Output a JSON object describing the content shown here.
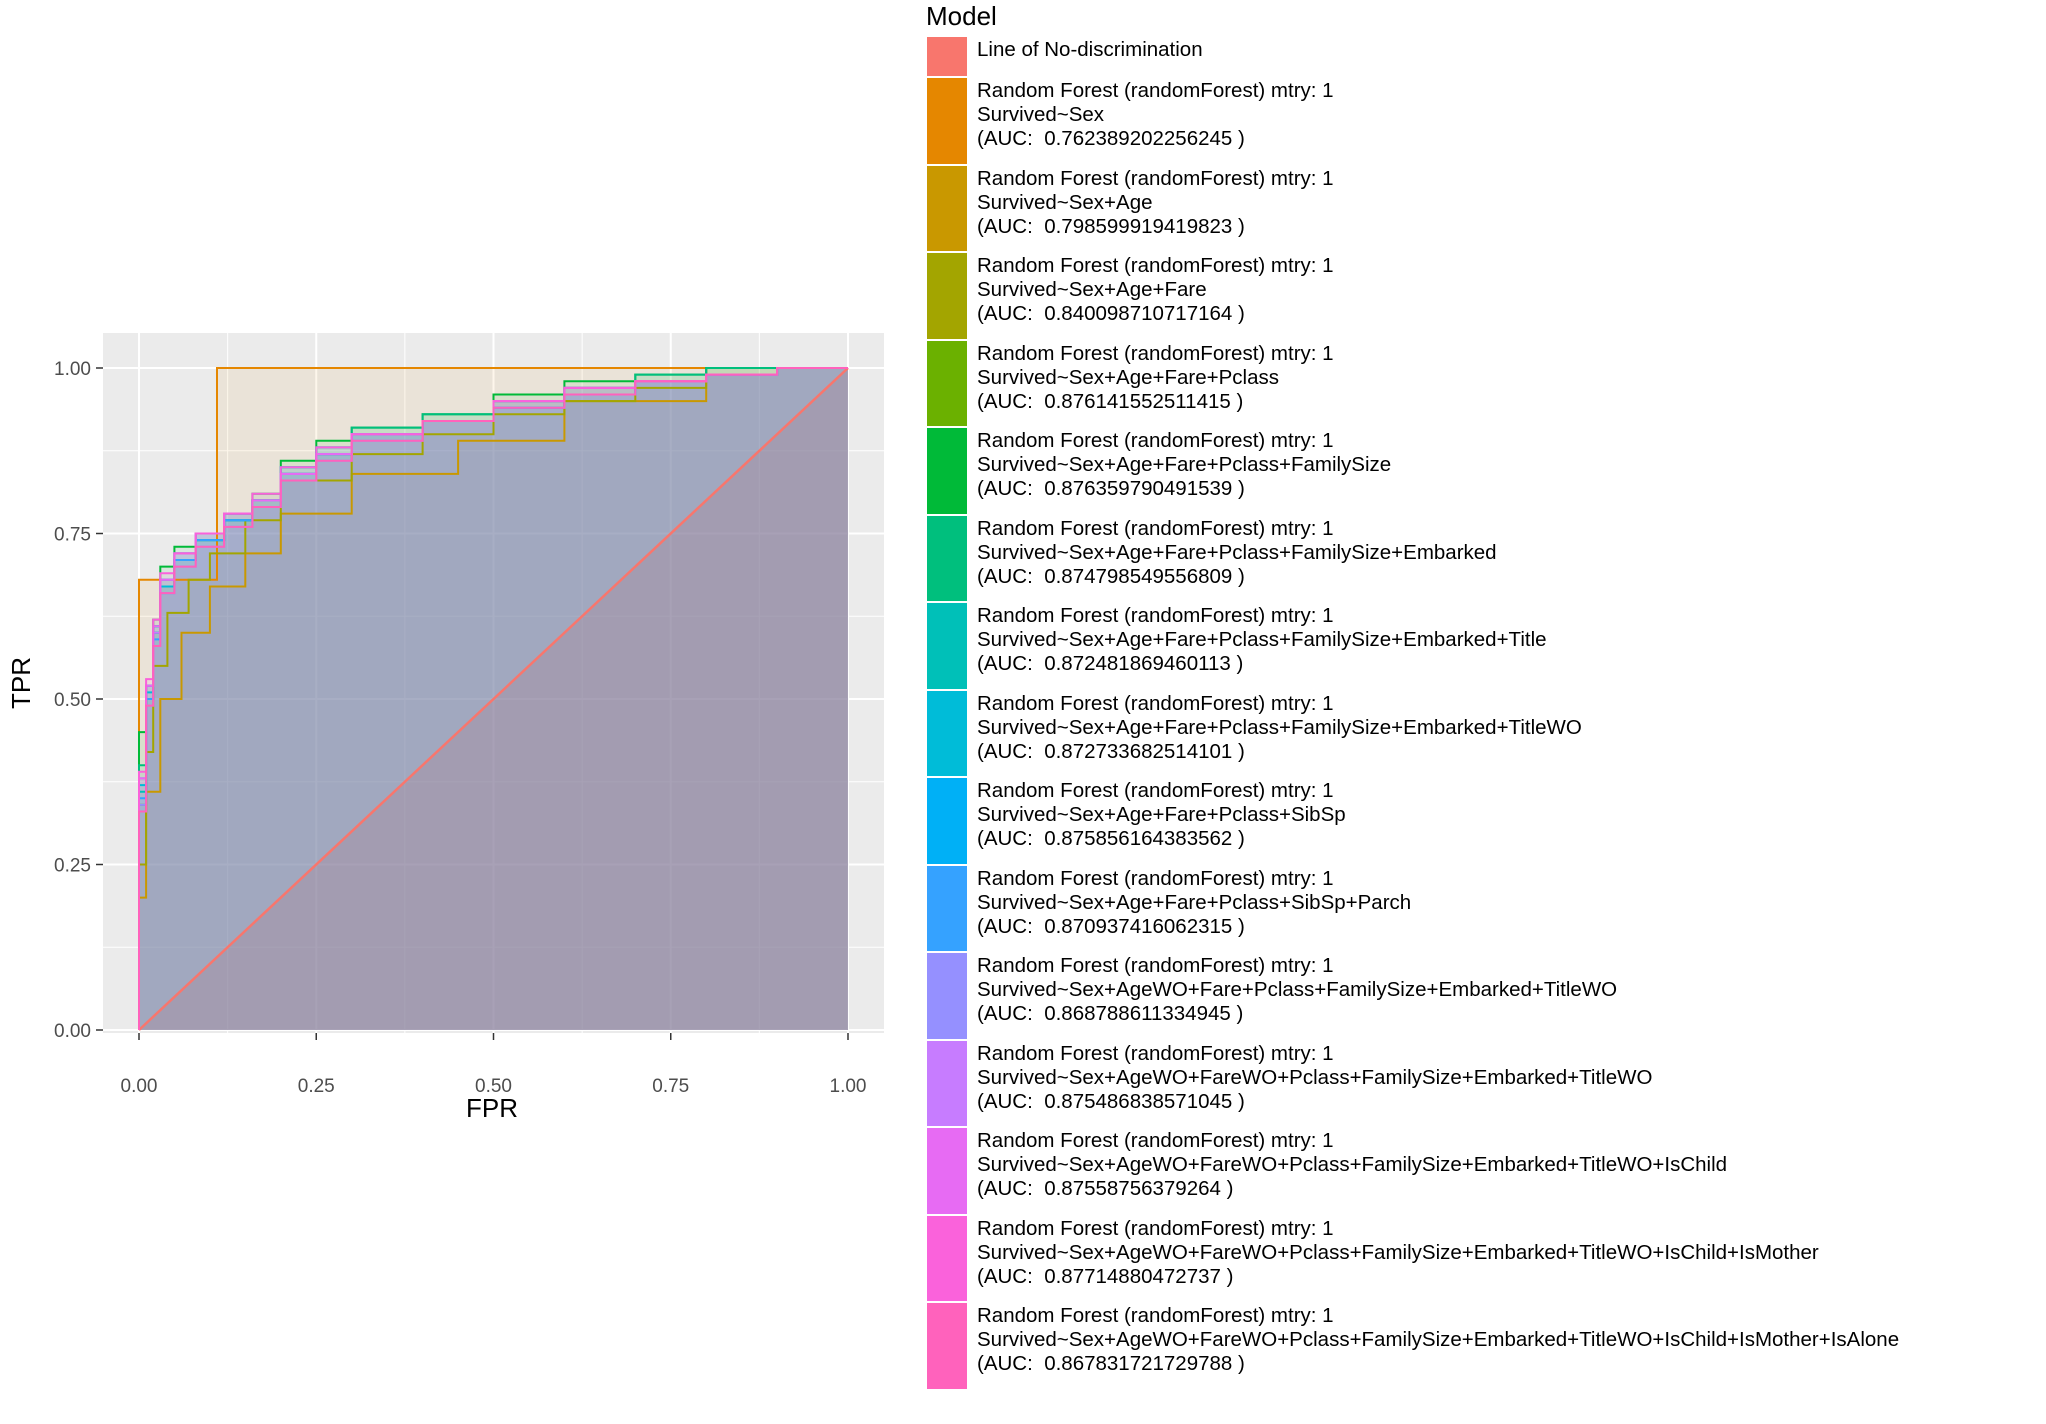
{
  "chart_data": {
    "type": "area",
    "xlabel": "FPR",
    "ylabel": "TPR",
    "xlim": [
      0,
      1
    ],
    "ylim": [
      0,
      1
    ],
    "xticks": [
      "0.00",
      "0.25",
      "0.50",
      "0.75",
      "1.00"
    ],
    "yticks": [
      "0.00",
      "0.25",
      "0.50",
      "0.75",
      "1.00"
    ],
    "grid": true,
    "legend_position": "right",
    "legend_title": "Model",
    "series": [
      {
        "name": "Line of No-discrimination",
        "color": "#F8766D",
        "x": [
          0,
          1
        ],
        "y": [
          0,
          1
        ]
      },
      {
        "name": "Random Forest (randomForest) mtry: 1\nSurvived~Sex\n(AUC:  0.762389202256245 )",
        "color": "#E58700",
        "x": [
          0,
          0.11,
          1
        ],
        "y": [
          0,
          0.68,
          1
        ]
      },
      {
        "name": "Random Forest (randomForest) mtry: 1\nSurvived~Sex+Age\n(AUC:  0.798599919419823 )",
        "color": "#C99800",
        "x": [
          0,
          0.01,
          0.03,
          0.06,
          0.1,
          0.15,
          0.2,
          0.3,
          0.45,
          0.6,
          0.8,
          1
        ],
        "y": [
          0,
          0.2,
          0.36,
          0.5,
          0.6,
          0.67,
          0.72,
          0.78,
          0.84,
          0.89,
          0.95,
          1
        ]
      },
      {
        "name": "Random Forest (randomForest) mtry: 1\nSurvived~Sex+Age+Fare\n(AUC:  0.840098710717164 )",
        "color": "#A3A500",
        "x": [
          0,
          0.01,
          0.02,
          0.04,
          0.07,
          0.1,
          0.15,
          0.2,
          0.3,
          0.4,
          0.5,
          0.6,
          0.7,
          0.8,
          0.9,
          1
        ],
        "y": [
          0,
          0.25,
          0.42,
          0.55,
          0.63,
          0.68,
          0.72,
          0.77,
          0.83,
          0.87,
          0.9,
          0.93,
          0.95,
          0.97,
          0.99,
          1
        ]
      },
      {
        "name": "Random Forest (randomForest) mtry: 1\nSurvived~Sex+Age+Fare+Pclass\n(AUC:  0.876141552511415 )",
        "color": "#6BB100",
        "x": [
          0,
          0.01,
          0.02,
          0.03,
          0.05,
          0.08,
          0.12,
          0.16,
          0.2,
          0.25,
          0.3,
          0.4,
          0.5,
          0.6,
          0.7,
          0.8,
          0.9,
          1
        ],
        "y": [
          0,
          0.34,
          0.5,
          0.6,
          0.67,
          0.71,
          0.74,
          0.77,
          0.8,
          0.84,
          0.87,
          0.9,
          0.92,
          0.95,
          0.97,
          0.98,
          0.99,
          1
        ]
      },
      {
        "name": "Random Forest (randomForest) mtry: 1\nSurvived~Sex+Age+Fare+Pclass+FamilySize\n(AUC:  0.876359790491539 )",
        "color": "#00BA38",
        "x": [
          0,
          0.01,
          0.02,
          0.03,
          0.05,
          0.08,
          0.12,
          0.16,
          0.2,
          0.25,
          0.3,
          0.4,
          0.5,
          0.6,
          0.7,
          0.8,
          0.9,
          1
        ],
        "y": [
          0,
          0.45,
          0.52,
          0.62,
          0.7,
          0.73,
          0.75,
          0.78,
          0.81,
          0.86,
          0.89,
          0.91,
          0.93,
          0.96,
          0.98,
          0.99,
          1,
          1
        ]
      },
      {
        "name": "Random Forest (randomForest) mtry: 1\nSurvived~Sex+Age+Fare+Pclass+FamilySize+Embarked\n(AUC:  0.874798549556809 )",
        "color": "#00BF7D",
        "x": [
          0,
          0.01,
          0.02,
          0.03,
          0.05,
          0.08,
          0.12,
          0.16,
          0.2,
          0.25,
          0.3,
          0.4,
          0.5,
          0.6,
          0.7,
          0.8,
          0.9,
          1
        ],
        "y": [
          0,
          0.4,
          0.52,
          0.61,
          0.68,
          0.72,
          0.75,
          0.78,
          0.8,
          0.85,
          0.88,
          0.91,
          0.93,
          0.95,
          0.97,
          0.99,
          1,
          1
        ]
      },
      {
        "name": "Random Forest (randomForest) mtry: 1\nSurvived~Sex+Age+Fare+Pclass+FamilySize+Embarked+Title\n(AUC:  0.872481869460113 )",
        "color": "#00C0B8",
        "x": [
          0,
          0.01,
          0.02,
          0.03,
          0.05,
          0.08,
          0.12,
          0.16,
          0.2,
          0.25,
          0.3,
          0.4,
          0.5,
          0.6,
          0.7,
          0.8,
          0.9,
          1
        ],
        "y": [
          0,
          0.36,
          0.5,
          0.6,
          0.67,
          0.71,
          0.74,
          0.77,
          0.8,
          0.84,
          0.87,
          0.9,
          0.92,
          0.94,
          0.96,
          0.98,
          0.99,
          1
        ]
      },
      {
        "name": "Random Forest (randomForest) mtry: 1\nSurvived~Sex+Age+Fare+Pclass+FamilySize+Embarked+TitleWO\n(AUC:  0.872733682514101 )",
        "color": "#00BCD8",
        "x": [
          0,
          0.01,
          0.02,
          0.03,
          0.05,
          0.08,
          0.12,
          0.16,
          0.2,
          0.25,
          0.3,
          0.4,
          0.5,
          0.6,
          0.7,
          0.8,
          0.9,
          1
        ],
        "y": [
          0,
          0.37,
          0.51,
          0.6,
          0.67,
          0.71,
          0.74,
          0.77,
          0.8,
          0.84,
          0.87,
          0.9,
          0.92,
          0.94,
          0.96,
          0.98,
          0.99,
          1
        ]
      },
      {
        "name": "Random Forest (randomForest) mtry: 1\nSurvived~Sex+Age+Fare+Pclass+SibSp\n(AUC:  0.875856164383562 )",
        "color": "#00B0F6",
        "x": [
          0,
          0.01,
          0.02,
          0.03,
          0.05,
          0.08,
          0.12,
          0.16,
          0.2,
          0.25,
          0.3,
          0.4,
          0.5,
          0.6,
          0.7,
          0.8,
          0.9,
          1
        ],
        "y": [
          0,
          0.38,
          0.52,
          0.61,
          0.68,
          0.72,
          0.75,
          0.78,
          0.8,
          0.85,
          0.88,
          0.9,
          0.92,
          0.95,
          0.97,
          0.98,
          0.99,
          1
        ]
      },
      {
        "name": "Random Forest (randomForest) mtry: 1\nSurvived~Sex+Age+Fare+Pclass+SibSp+Parch\n(AUC:  0.870937416062315 )",
        "color": "#35A2FF",
        "x": [
          0,
          0.01,
          0.02,
          0.03,
          0.05,
          0.08,
          0.12,
          0.16,
          0.2,
          0.25,
          0.3,
          0.4,
          0.5,
          0.6,
          0.7,
          0.8,
          0.9,
          1
        ],
        "y": [
          0,
          0.35,
          0.5,
          0.59,
          0.66,
          0.71,
          0.74,
          0.77,
          0.79,
          0.84,
          0.87,
          0.9,
          0.92,
          0.94,
          0.96,
          0.98,
          0.99,
          1
        ]
      },
      {
        "name": "Random Forest (randomForest) mtry: 1\nSurvived~Sex+AgeWO+Fare+Pclass+FamilySize+Embarked+TitleWO\n(AUC:  0.868788611334945 )",
        "color": "#9590FF",
        "x": [
          0,
          0.01,
          0.02,
          0.03,
          0.05,
          0.08,
          0.12,
          0.16,
          0.2,
          0.25,
          0.3,
          0.4,
          0.5,
          0.6,
          0.7,
          0.8,
          0.9,
          1
        ],
        "y": [
          0,
          0.34,
          0.49,
          0.58,
          0.66,
          0.7,
          0.73,
          0.76,
          0.79,
          0.83,
          0.86,
          0.89,
          0.92,
          0.94,
          0.96,
          0.98,
          0.99,
          1
        ]
      },
      {
        "name": "Random Forest (randomForest) mtry: 1\nSurvived~Sex+AgeWO+FareWO+Pclass+FamilySize+Embarked+TitleWO\n(AUC:  0.875486838571045 )",
        "color": "#C77CFF",
        "x": [
          0,
          0.01,
          0.02,
          0.03,
          0.05,
          0.08,
          0.12,
          0.16,
          0.2,
          0.25,
          0.3,
          0.4,
          0.5,
          0.6,
          0.7,
          0.8,
          0.9,
          1
        ],
        "y": [
          0,
          0.38,
          0.52,
          0.6,
          0.68,
          0.72,
          0.75,
          0.78,
          0.8,
          0.84,
          0.87,
          0.9,
          0.92,
          0.95,
          0.97,
          0.98,
          0.99,
          1
        ]
      },
      {
        "name": "Random Forest (randomForest) mtry: 1\nSurvived~Sex+AgeWO+FareWO+Pclass+FamilySize+Embarked+TitleWO+IsChild\n(AUC:  0.87558756379264 )",
        "color": "#E76BF3",
        "x": [
          0,
          0.01,
          0.02,
          0.03,
          0.05,
          0.08,
          0.12,
          0.16,
          0.2,
          0.25,
          0.3,
          0.4,
          0.5,
          0.6,
          0.7,
          0.8,
          0.9,
          1
        ],
        "y": [
          0,
          0.38,
          0.52,
          0.61,
          0.68,
          0.72,
          0.75,
          0.78,
          0.8,
          0.84,
          0.87,
          0.9,
          0.92,
          0.95,
          0.97,
          0.98,
          0.99,
          1
        ]
      },
      {
        "name": "Random Forest (randomForest) mtry: 1\nSurvived~Sex+AgeWO+FareWO+Pclass+FamilySize+Embarked+TitleWO+IsChild+IsMother\n(AUC:  0.87714880472737 )",
        "color": "#FA62DB",
        "x": [
          0,
          0.01,
          0.02,
          0.03,
          0.05,
          0.08,
          0.12,
          0.16,
          0.2,
          0.25,
          0.3,
          0.4,
          0.5,
          0.6,
          0.7,
          0.8,
          0.9,
          1
        ],
        "y": [
          0,
          0.39,
          0.53,
          0.62,
          0.69,
          0.72,
          0.75,
          0.78,
          0.81,
          0.85,
          0.88,
          0.9,
          0.92,
          0.95,
          0.97,
          0.98,
          0.99,
          1
        ]
      },
      {
        "name": "Random Forest (randomForest) mtry: 1\nSurvived~Sex+AgeWO+FareWO+Pclass+FamilySize+Embarked+TitleWO+IsChild+IsMother+IsAlone\n(AUC:  0.867831721729788 )",
        "color": "#FF62BC",
        "x": [
          0,
          0.01,
          0.02,
          0.03,
          0.05,
          0.08,
          0.12,
          0.16,
          0.2,
          0.25,
          0.3,
          0.4,
          0.5,
          0.6,
          0.7,
          0.8,
          0.9,
          1
        ],
        "y": [
          0,
          0.33,
          0.49,
          0.58,
          0.66,
          0.7,
          0.73,
          0.76,
          0.79,
          0.83,
          0.86,
          0.89,
          0.92,
          0.94,
          0.96,
          0.98,
          0.99,
          1
        ]
      }
    ]
  },
  "legend_swatch_fill": "#FF6C91"
}
